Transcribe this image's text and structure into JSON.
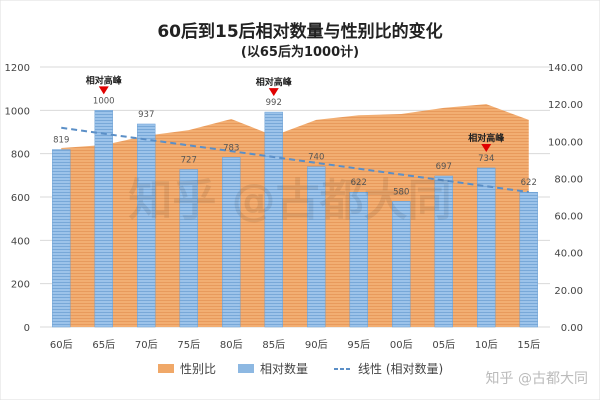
{
  "chart_data": {
    "type": "bar+area+line",
    "title": "60后到15后相对数量与性别比的变化",
    "subtitle": "(以65后为1000计)",
    "categories": [
      "60后",
      "65后",
      "70后",
      "75后",
      "80后",
      "85后",
      "90后",
      "95后",
      "00后",
      "05后",
      "10后",
      "15后"
    ],
    "left_axis": {
      "range": [
        0,
        1200
      ],
      "ticks": [
        "0",
        "200",
        "400",
        "600",
        "800",
        "1000",
        "1200"
      ]
    },
    "right_axis": {
      "range": [
        0,
        140
      ],
      "ticks": [
        "0.00",
        "20.00",
        "40.00",
        "60.00",
        "80.00",
        "100.00",
        "120.00",
        "140.00"
      ]
    },
    "grid": true,
    "series": [
      {
        "name": "性别比",
        "type": "area",
        "axis": "right",
        "color": "#F0A868",
        "values": [
          96.4,
          98,
          103,
          106,
          112,
          103,
          111.5,
          114,
          114.7,
          118,
          120,
          111.5
        ]
      },
      {
        "name": "相对数量",
        "type": "bar",
        "axis": "left",
        "color": "#8DB8E2",
        "values": [
          819,
          1000,
          937,
          727,
          783,
          992,
          740,
          622,
          580,
          697,
          734,
          622
        ]
      },
      {
        "name": "线性 (相对数量)",
        "type": "trendline",
        "of": "相对数量",
        "color": "#5B8FC7"
      }
    ],
    "annotations": [
      {
        "category": "65后",
        "text": "相对高峰"
      },
      {
        "category": "85后",
        "text": "相对高峰"
      },
      {
        "category": "10后",
        "text": "相对高峰"
      }
    ],
    "legend_placement": "bottom"
  },
  "watermark": "知乎 @古都大同",
  "credit": "知乎 @古都大同"
}
